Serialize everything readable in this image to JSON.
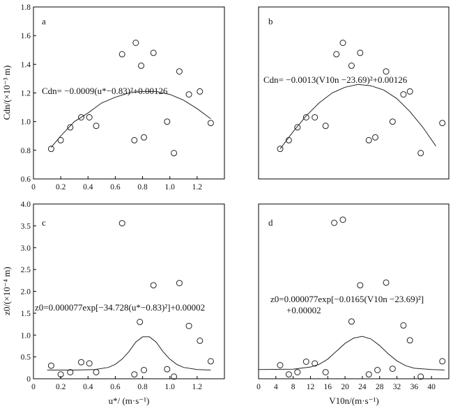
{
  "chart_data": [
    {
      "id": "a",
      "type": "scatter",
      "panel_label": "a",
      "title": "",
      "xlabel": "u*/ (m·s⁻¹)",
      "ylabel": "Cdn/(×10⁻³ m)",
      "xlim": [
        0,
        1.4
      ],
      "ylim": [
        0.6,
        1.8
      ],
      "xticks": [
        "0",
        "0.2",
        "0.4",
        "0.6",
        "0.8",
        "1.0",
        "1.2"
      ],
      "yticks": [
        "0.6",
        "0.8",
        "1.0",
        "1.2",
        "1.4",
        "1.6",
        "1.8"
      ],
      "equation": "Cdn= −0.0009(u*−0.83)²+0.00126",
      "points": [
        {
          "x": 0.13,
          "y": 0.81
        },
        {
          "x": 0.2,
          "y": 0.87
        },
        {
          "x": 0.27,
          "y": 0.96
        },
        {
          "x": 0.35,
          "y": 1.03
        },
        {
          "x": 0.41,
          "y": 1.03
        },
        {
          "x": 0.46,
          "y": 0.97
        },
        {
          "x": 0.65,
          "y": 1.47
        },
        {
          "x": 0.74,
          "y": 0.87
        },
        {
          "x": 0.75,
          "y": 1.55
        },
        {
          "x": 0.79,
          "y": 1.39
        },
        {
          "x": 0.81,
          "y": 0.89
        },
        {
          "x": 0.88,
          "y": 1.48
        },
        {
          "x": 0.98,
          "y": 1.0
        },
        {
          "x": 1.03,
          "y": 0.78
        },
        {
          "x": 1.07,
          "y": 1.35
        },
        {
          "x": 1.14,
          "y": 1.19
        },
        {
          "x": 1.22,
          "y": 1.21
        },
        {
          "x": 1.3,
          "y": 0.99
        }
      ],
      "fit_curve": [
        {
          "x": 0.13,
          "y": 0.82
        },
        {
          "x": 0.2,
          "y": 0.9
        },
        {
          "x": 0.3,
          "y": 1.0
        },
        {
          "x": 0.4,
          "y": 1.06
        },
        {
          "x": 0.5,
          "y": 1.13
        },
        {
          "x": 0.6,
          "y": 1.17
        },
        {
          "x": 0.7,
          "y": 1.2
        },
        {
          "x": 0.8,
          "y": 1.21
        },
        {
          "x": 0.9,
          "y": 1.21
        },
        {
          "x": 1.0,
          "y": 1.19
        },
        {
          "x": 1.1,
          "y": 1.15
        },
        {
          "x": 1.2,
          "y": 1.09
        },
        {
          "x": 1.3,
          "y": 1.02
        }
      ]
    },
    {
      "id": "b",
      "type": "scatter",
      "panel_label": "b",
      "title": "",
      "xlabel": "",
      "ylabel": "",
      "xlim": [
        0,
        44
      ],
      "ylim": [
        0.6,
        1.8
      ],
      "xticks": [],
      "yticks": [],
      "equation": "Cdn= −0.0013(V10n −23.69)²+0.00126",
      "points": [
        {
          "x": 5,
          "y": 0.81
        },
        {
          "x": 7,
          "y": 0.87
        },
        {
          "x": 9,
          "y": 0.96
        },
        {
          "x": 11,
          "y": 1.03
        },
        {
          "x": 13,
          "y": 1.03
        },
        {
          "x": 15.5,
          "y": 0.97
        },
        {
          "x": 18,
          "y": 1.47
        },
        {
          "x": 19.5,
          "y": 1.55
        },
        {
          "x": 21.5,
          "y": 1.39
        },
        {
          "x": 23.5,
          "y": 1.48
        },
        {
          "x": 25.5,
          "y": 0.87
        },
        {
          "x": 27,
          "y": 0.89
        },
        {
          "x": 29.5,
          "y": 1.35
        },
        {
          "x": 31,
          "y": 1.0
        },
        {
          "x": 33.5,
          "y": 1.19
        },
        {
          "x": 35,
          "y": 1.21
        },
        {
          "x": 37.5,
          "y": 0.78
        },
        {
          "x": 42.5,
          "y": 0.99
        }
      ],
      "fit_curve": [
        {
          "x": 5,
          "y": 0.81
        },
        {
          "x": 8,
          "y": 0.93
        },
        {
          "x": 11,
          "y": 1.04
        },
        {
          "x": 14,
          "y": 1.13
        },
        {
          "x": 17,
          "y": 1.2
        },
        {
          "x": 20,
          "y": 1.24
        },
        {
          "x": 23,
          "y": 1.26
        },
        {
          "x": 26,
          "y": 1.25
        },
        {
          "x": 29,
          "y": 1.22
        },
        {
          "x": 32,
          "y": 1.16
        },
        {
          "x": 35,
          "y": 1.07
        },
        {
          "x": 38,
          "y": 0.96
        },
        {
          "x": 41,
          "y": 0.83
        }
      ]
    },
    {
      "id": "c",
      "type": "scatter",
      "panel_label": "c",
      "title": "",
      "xlabel": "u*/ (m·s⁻¹)",
      "ylabel": "z0/(×10⁻⁴ m)",
      "xlim": [
        0,
        1.4
      ],
      "ylim": [
        0,
        4.0
      ],
      "xticks": [
        "0",
        "0.2",
        "0.4",
        "0.6",
        "0.8",
        "1.0",
        "1.2"
      ],
      "yticks": [
        "0",
        "0.5",
        "1.0",
        "1.5",
        "2.0",
        "2.5",
        "3.0",
        "3.5",
        "4.0"
      ],
      "equation": "z0=0.000077exp[−34.728(u*−0.83)²]+0.00002",
      "points": [
        {
          "x": 0.13,
          "y": 0.3
        },
        {
          "x": 0.2,
          "y": 0.1
        },
        {
          "x": 0.27,
          "y": 0.15
        },
        {
          "x": 0.35,
          "y": 0.38
        },
        {
          "x": 0.41,
          "y": 0.35
        },
        {
          "x": 0.46,
          "y": 0.15
        },
        {
          "x": 0.65,
          "y": 3.56
        },
        {
          "x": 0.74,
          "y": 0.1
        },
        {
          "x": 0.78,
          "y": 1.3
        },
        {
          "x": 0.81,
          "y": 0.2
        },
        {
          "x": 0.88,
          "y": 2.14
        },
        {
          "x": 0.98,
          "y": 0.22
        },
        {
          "x": 1.03,
          "y": 0.05
        },
        {
          "x": 1.07,
          "y": 2.19
        },
        {
          "x": 1.14,
          "y": 1.21
        },
        {
          "x": 1.22,
          "y": 0.87
        },
        {
          "x": 1.3,
          "y": 0.4
        }
      ],
      "fit_curve": [
        {
          "x": 0.1,
          "y": 0.2
        },
        {
          "x": 0.3,
          "y": 0.2
        },
        {
          "x": 0.45,
          "y": 0.21
        },
        {
          "x": 0.55,
          "y": 0.26
        },
        {
          "x": 0.6,
          "y": 0.33
        },
        {
          "x": 0.65,
          "y": 0.45
        },
        {
          "x": 0.7,
          "y": 0.62
        },
        {
          "x": 0.75,
          "y": 0.84
        },
        {
          "x": 0.8,
          "y": 0.96
        },
        {
          "x": 0.85,
          "y": 0.96
        },
        {
          "x": 0.9,
          "y": 0.84
        },
        {
          "x": 0.95,
          "y": 0.62
        },
        {
          "x": 1.0,
          "y": 0.45
        },
        {
          "x": 1.05,
          "y": 0.33
        },
        {
          "x": 1.1,
          "y": 0.26
        },
        {
          "x": 1.2,
          "y": 0.21
        },
        {
          "x": 1.3,
          "y": 0.2
        }
      ]
    },
    {
      "id": "d",
      "type": "scatter",
      "panel_label": "d",
      "title": "",
      "xlabel": "V10n/(m·s⁻¹)",
      "ylabel": "",
      "xlim": [
        0,
        44
      ],
      "ylim": [
        0,
        4.0
      ],
      "xticks": [
        "0",
        "4",
        "8",
        "12",
        "16",
        "20",
        "24",
        "28",
        "32",
        "36",
        "40"
      ],
      "yticks": [],
      "equation": "z0=0.000077exp[−0.0165(V10n −23.69)²]",
      "equation_line2": "+0.00002",
      "points": [
        {
          "x": 5,
          "y": 0.31
        },
        {
          "x": 7,
          "y": 0.1
        },
        {
          "x": 9,
          "y": 0.15
        },
        {
          "x": 11,
          "y": 0.39
        },
        {
          "x": 13,
          "y": 0.35
        },
        {
          "x": 15.5,
          "y": 0.15
        },
        {
          "x": 17.5,
          "y": 3.57
        },
        {
          "x": 19.5,
          "y": 3.64
        },
        {
          "x": 21.5,
          "y": 1.31
        },
        {
          "x": 23.5,
          "y": 2.14
        },
        {
          "x": 25.5,
          "y": 0.1
        },
        {
          "x": 27.5,
          "y": 0.2
        },
        {
          "x": 29.5,
          "y": 2.2
        },
        {
          "x": 31,
          "y": 0.23
        },
        {
          "x": 33.5,
          "y": 1.22
        },
        {
          "x": 35,
          "y": 0.88
        },
        {
          "x": 37.5,
          "y": 0.05
        },
        {
          "x": 42.5,
          "y": 0.4
        }
      ],
      "fit_curve": [
        {
          "x": 0,
          "y": 0.21
        },
        {
          "x": 8,
          "y": 0.22
        },
        {
          "x": 12,
          "y": 0.27
        },
        {
          "x": 14,
          "y": 0.33
        },
        {
          "x": 16,
          "y": 0.45
        },
        {
          "x": 18,
          "y": 0.63
        },
        {
          "x": 20,
          "y": 0.81
        },
        {
          "x": 22,
          "y": 0.93
        },
        {
          "x": 24,
          "y": 0.97
        },
        {
          "x": 26,
          "y": 0.91
        },
        {
          "x": 28,
          "y": 0.76
        },
        {
          "x": 30,
          "y": 0.57
        },
        {
          "x": 32,
          "y": 0.41
        },
        {
          "x": 34,
          "y": 0.3
        },
        {
          "x": 36,
          "y": 0.24
        },
        {
          "x": 40,
          "y": 0.21
        },
        {
          "x": 43,
          "y": 0.2
        }
      ]
    }
  ]
}
